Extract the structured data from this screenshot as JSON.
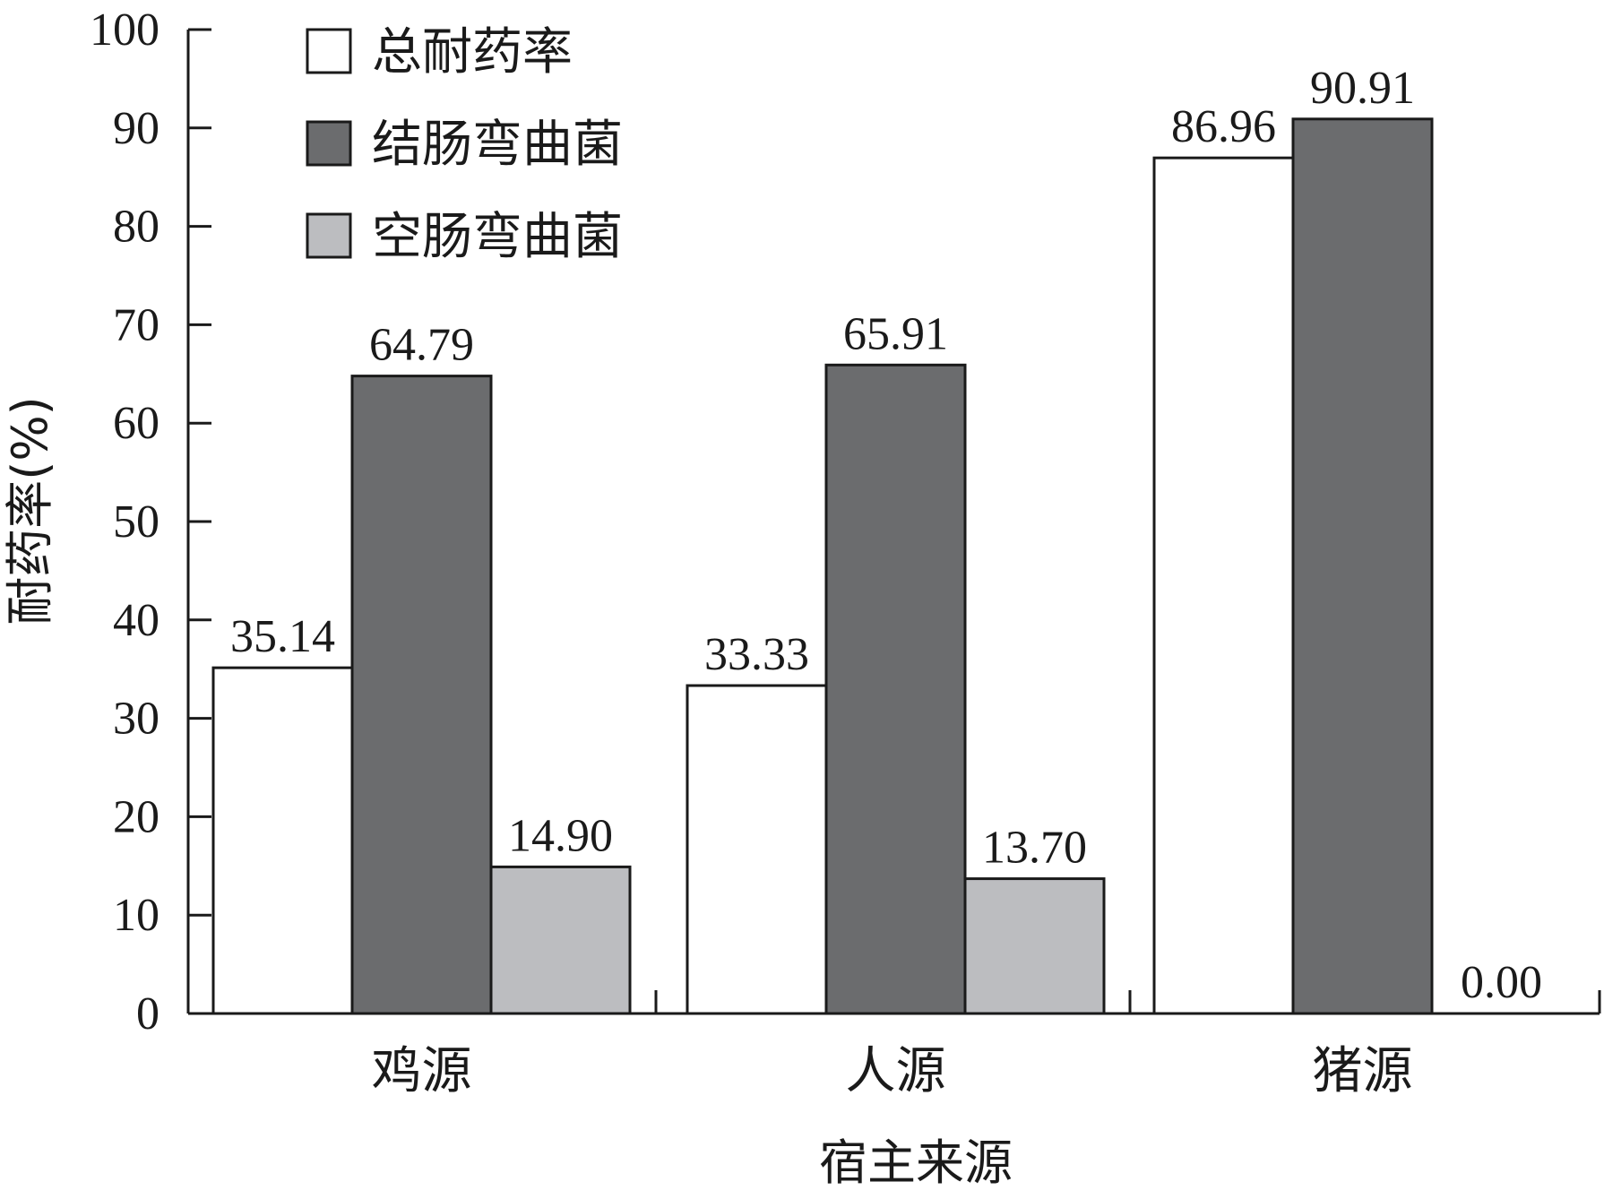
{
  "chart_data": {
    "type": "bar",
    "xlabel": "宿主来源",
    "ylabel": "耐药率(%)",
    "ylim": [
      0,
      100
    ],
    "yticks": [
      0,
      10,
      20,
      30,
      40,
      50,
      60,
      70,
      80,
      90,
      100
    ],
    "categories": [
      "鸡源",
      "人源",
      "猪源"
    ],
    "legend_position": "top-left",
    "grid": false,
    "series": [
      {
        "name": "总耐药率",
        "color": "#ffffff",
        "values": [
          35.14,
          33.33,
          86.96
        ],
        "labels": [
          "35.14",
          "33.33",
          "86.96"
        ]
      },
      {
        "name": "结肠弯曲菌",
        "color": "#6b6c6e",
        "values": [
          64.79,
          65.91,
          90.91
        ],
        "labels": [
          "64.79",
          "65.91",
          "90.91"
        ]
      },
      {
        "name": "空肠弯曲菌",
        "color": "#bcbdc0",
        "values": [
          14.9,
          13.7,
          0.0
        ],
        "labels": [
          "14.90",
          "13.70",
          "0.00"
        ]
      }
    ]
  }
}
